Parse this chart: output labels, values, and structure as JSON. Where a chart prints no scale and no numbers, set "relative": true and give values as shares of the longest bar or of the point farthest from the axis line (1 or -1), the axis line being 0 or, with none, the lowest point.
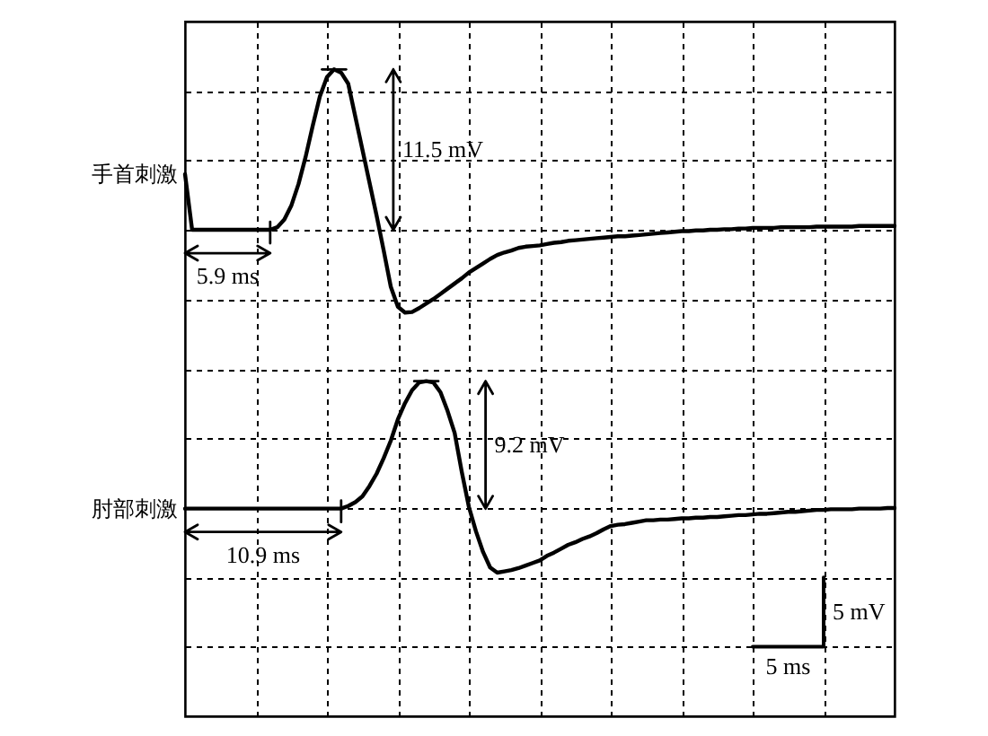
{
  "chart_data": {
    "type": "line",
    "relative": true,
    "grid": true,
    "categories": [
      null,
      null,
      null,
      null,
      null,
      null,
      null,
      null,
      null,
      null,
      null,
      null,
      null,
      null,
      null,
      null,
      null,
      null,
      null,
      null,
      null,
      null,
      null,
      null,
      null,
      null,
      null,
      null,
      null,
      null,
      null,
      null,
      null,
      null,
      null,
      null,
      null,
      null,
      null,
      null,
      null,
      null,
      null,
      null,
      null,
      null,
      null,
      null,
      null,
      null,
      null,
      null,
      null,
      null,
      null,
      null,
      null,
      null,
      null,
      null,
      null,
      null,
      null,
      null,
      null,
      null,
      null,
      null,
      null,
      null,
      null,
      null,
      null,
      null,
      null,
      null,
      null,
      null,
      null,
      null,
      null,
      null,
      null,
      null,
      null,
      null,
      null,
      null,
      null,
      null,
      null,
      null,
      null,
      null,
      null,
      null,
      null,
      null,
      null,
      null,
      null
    ],
    "series": [
      {
        "name": "手首刺激",
        "color": "#000000",
        "values": [
          0.838,
          0.752,
          0.752,
          0.752,
          0.752,
          0.752,
          0.752,
          0.752,
          0.752,
          0.752,
          0.752,
          0.752,
          0.752,
          0.756,
          0.768,
          0.79,
          0.823,
          0.865,
          0.913,
          0.958,
          0.988,
          1.0,
          0.995,
          0.978,
          0.927,
          0.876,
          0.825,
          0.774,
          0.72,
          0.664,
          0.633,
          0.624,
          0.625,
          0.631,
          0.638,
          0.645,
          0.653,
          0.661,
          0.669,
          0.677,
          0.686,
          0.693,
          0.7,
          0.707,
          0.713,
          0.717,
          0.72,
          0.724,
          0.726,
          0.727,
          0.728,
          0.73,
          0.732,
          0.733,
          0.735,
          0.736,
          0.737,
          0.738,
          0.739,
          0.74,
          0.741,
          0.742,
          0.742,
          0.743,
          0.744,
          0.745,
          0.746,
          0.747,
          0.748,
          0.749,
          0.75,
          0.75,
          0.751,
          0.751,
          0.752,
          0.752,
          0.753,
          0.753,
          0.754,
          0.754,
          0.755,
          0.755,
          0.755,
          0.755,
          0.756,
          0.756,
          0.756,
          0.756,
          0.756,
          0.757,
          0.757,
          0.757,
          0.757,
          0.757,
          0.757,
          0.758,
          0.758,
          0.758,
          0.758,
          0.758,
          0.758
        ]
      },
      {
        "name": "肘部刺激",
        "color": "#000000",
        "values": [
          0.321,
          0.321,
          0.321,
          0.321,
          0.321,
          0.321,
          0.321,
          0.321,
          0.321,
          0.321,
          0.321,
          0.321,
          0.321,
          0.321,
          0.321,
          0.321,
          0.321,
          0.321,
          0.321,
          0.321,
          0.321,
          0.321,
          0.321,
          0.325,
          0.331,
          0.34,
          0.356,
          0.375,
          0.399,
          0.426,
          0.459,
          0.484,
          0.504,
          0.516,
          0.518,
          0.516,
          0.501,
          0.472,
          0.438,
          0.378,
          0.324,
          0.286,
          0.254,
          0.23,
          0.222,
          0.224,
          0.226,
          0.229,
          0.233,
          0.237,
          0.241,
          0.248,
          0.253,
          0.259,
          0.265,
          0.269,
          0.274,
          0.278,
          0.283,
          0.289,
          0.294,
          0.296,
          0.297,
          0.299,
          0.301,
          0.303,
          0.303,
          0.304,
          0.304,
          0.305,
          0.306,
          0.306,
          0.307,
          0.307,
          0.308,
          0.308,
          0.309,
          0.31,
          0.311,
          0.311,
          0.312,
          0.313,
          0.313,
          0.314,
          0.315,
          0.316,
          0.316,
          0.317,
          0.318,
          0.319,
          0.319,
          0.32,
          0.32,
          0.32,
          0.32,
          0.321,
          0.321,
          0.321,
          0.321,
          0.322,
          0.322
        ]
      }
    ],
    "annotations": [
      "5.9 ms",
      "11.5 mV",
      "10.9 ms",
      "9.2 mV",
      "5 mV",
      "5 ms"
    ]
  }
}
